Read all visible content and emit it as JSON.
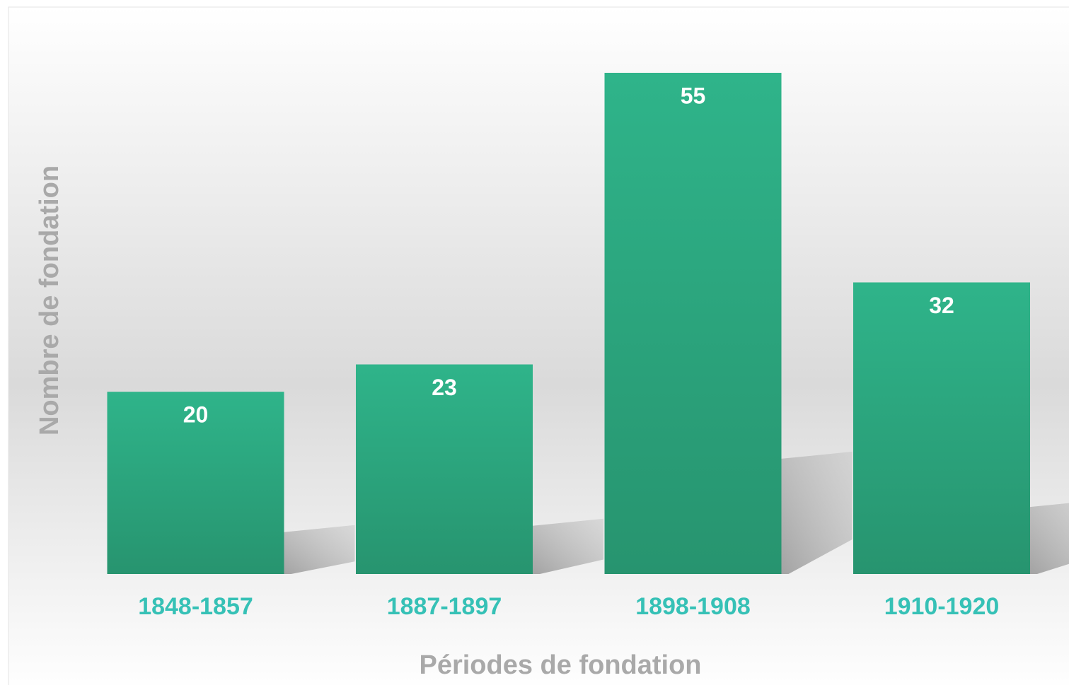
{
  "chart_data": {
    "type": "bar",
    "categories": [
      "1848-1857",
      "1887-1897",
      "1898-1908",
      "1910-1920"
    ],
    "values": [
      20,
      23,
      55,
      32
    ],
    "color": "#2aa57e",
    "x_label": "Périodes de fondation",
    "y_label": "Nombre de fondation"
  }
}
